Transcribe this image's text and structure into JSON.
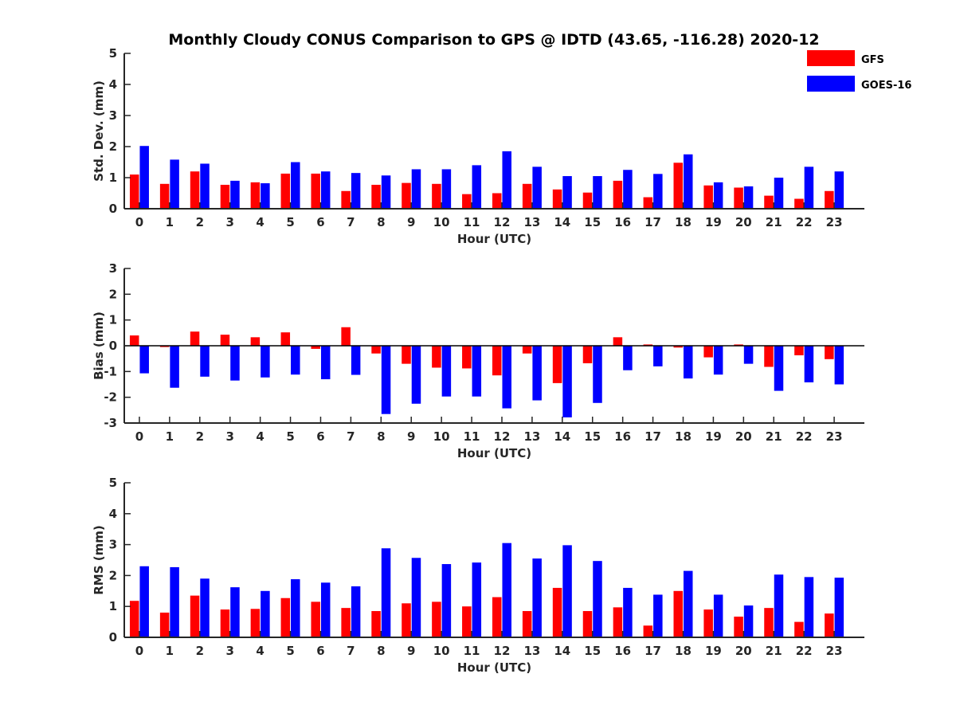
{
  "title": "Monthly Cloudy CONUS Comparison to GPS @ IDTD (43.65, -116.28) 2020-12",
  "legend": {
    "placement": "top-right",
    "entries": [
      {
        "name": "GFS",
        "color": "#ff0000"
      },
      {
        "name": "GOES-16",
        "color": "#0000ff"
      }
    ]
  },
  "chart_data": [
    {
      "type": "bar",
      "xlabel": "Hour (UTC)",
      "ylabel": "Std. Dev. (mm)",
      "ylim": [
        0,
        5
      ],
      "yticks": [
        0,
        1,
        2,
        3,
        4,
        5
      ],
      "categories": [
        "0",
        "1",
        "2",
        "3",
        "4",
        "5",
        "6",
        "7",
        "8",
        "9",
        "10",
        "11",
        "12",
        "13",
        "14",
        "15",
        "16",
        "17",
        "18",
        "19",
        "20",
        "21",
        "22",
        "23"
      ],
      "series": [
        {
          "name": "GFS",
          "color": "#ff0000",
          "values": [
            1.1,
            0.8,
            1.2,
            0.77,
            0.85,
            1.13,
            1.13,
            0.57,
            0.77,
            0.83,
            0.8,
            0.47,
            0.5,
            0.8,
            0.62,
            0.52,
            0.9,
            0.37,
            1.48,
            0.75,
            0.68,
            0.42,
            0.32,
            0.57
          ]
        },
        {
          "name": "GOES-16",
          "color": "#0000ff",
          "values": [
            2.02,
            1.58,
            1.45,
            0.9,
            0.82,
            1.5,
            1.2,
            1.15,
            1.07,
            1.27,
            1.27,
            1.4,
            1.85,
            1.35,
            1.05,
            1.05,
            1.25,
            1.12,
            1.75,
            0.85,
            0.72,
            1.0,
            1.35,
            1.2
          ]
        }
      ]
    },
    {
      "type": "bar",
      "xlabel": "Hour (UTC)",
      "ylabel": "Bias (mm)",
      "ylim": [
        -3,
        3
      ],
      "yticks": [
        -3,
        -2,
        -1,
        0,
        1,
        2,
        3
      ],
      "zero_line": true,
      "categories": [
        "0",
        "1",
        "2",
        "3",
        "4",
        "5",
        "6",
        "7",
        "8",
        "9",
        "10",
        "11",
        "12",
        "13",
        "14",
        "15",
        "16",
        "17",
        "18",
        "19",
        "20",
        "21",
        "22",
        "23"
      ],
      "series": [
        {
          "name": "GFS",
          "color": "#ff0000",
          "values": [
            0.4,
            -0.05,
            0.55,
            0.43,
            0.33,
            0.52,
            -0.12,
            0.72,
            -0.3,
            -0.7,
            -0.85,
            -0.88,
            -1.15,
            -0.3,
            -1.45,
            -0.68,
            0.33,
            0.05,
            -0.07,
            -0.45,
            0.05,
            -0.82,
            -0.37,
            -0.52
          ]
        },
        {
          "name": "GOES-16",
          "color": "#0000ff",
          "values": [
            -1.07,
            -1.63,
            -1.2,
            -1.35,
            -1.23,
            -1.12,
            -1.3,
            -1.13,
            -2.65,
            -2.25,
            -1.97,
            -1.97,
            -2.43,
            -2.12,
            -2.78,
            -2.22,
            -0.95,
            -0.8,
            -1.27,
            -1.12,
            -0.7,
            -1.75,
            -1.42,
            -1.5
          ]
        }
      ]
    },
    {
      "type": "bar",
      "xlabel": "Hour (UTC)",
      "ylabel": "RMS (mm)",
      "ylim": [
        0,
        5
      ],
      "yticks": [
        0,
        1,
        2,
        3,
        4,
        5
      ],
      "categories": [
        "0",
        "1",
        "2",
        "3",
        "4",
        "5",
        "6",
        "7",
        "8",
        "9",
        "10",
        "11",
        "12",
        "13",
        "14",
        "15",
        "16",
        "17",
        "18",
        "19",
        "20",
        "21",
        "22",
        "23"
      ],
      "series": [
        {
          "name": "GFS",
          "color": "#ff0000",
          "values": [
            1.18,
            0.8,
            1.35,
            0.9,
            0.92,
            1.27,
            1.15,
            0.95,
            0.85,
            1.1,
            1.15,
            1.0,
            1.3,
            0.85,
            1.6,
            0.85,
            0.97,
            0.38,
            1.5,
            0.9,
            0.67,
            0.95,
            0.5,
            0.77
          ]
        },
        {
          "name": "GOES-16",
          "color": "#0000ff",
          "values": [
            2.3,
            2.27,
            1.9,
            1.62,
            1.5,
            1.88,
            1.77,
            1.65,
            2.88,
            2.57,
            2.37,
            2.42,
            3.05,
            2.55,
            2.98,
            2.47,
            1.6,
            1.38,
            2.15,
            1.38,
            1.03,
            2.03,
            1.95,
            1.93
          ]
        }
      ]
    }
  ]
}
